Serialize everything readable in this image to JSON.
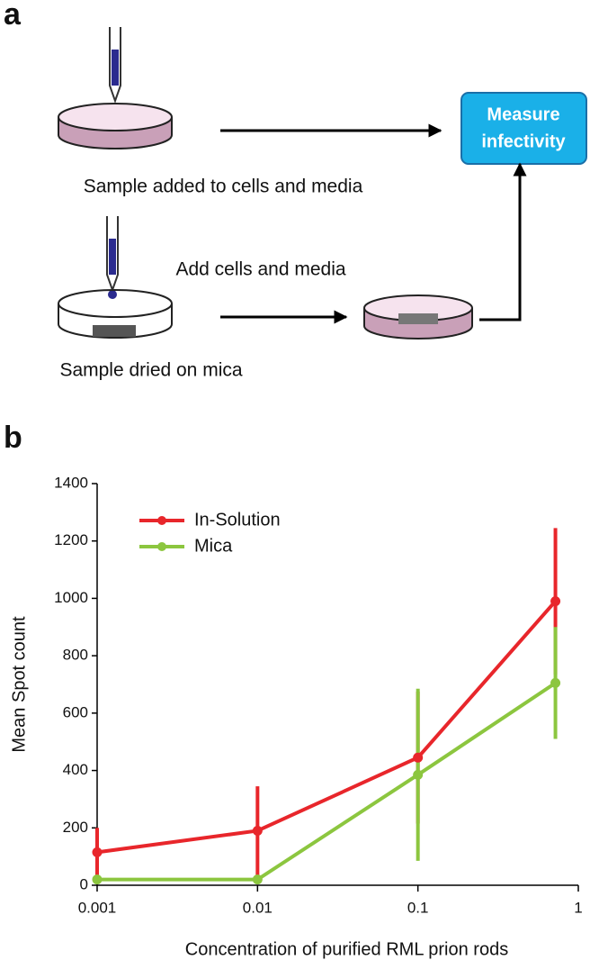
{
  "panel_a": {
    "label": "a",
    "box": [
      "Measure",
      "infectivity"
    ],
    "caption_top": "Sample added to cells and media",
    "caption_middle": "Add cells and media",
    "caption_bottom": "Sample dried on mica"
  },
  "panel_b": {
    "label": "b"
  },
  "chart_data": {
    "type": "line",
    "xlabel": "Concentration of purified RML prion rods",
    "ylabel": "Mean Spot count",
    "x": [
      0.001,
      0.01,
      0.1,
      0.72
    ],
    "xscale": "log",
    "xlim": [
      0.001,
      1
    ],
    "xticks": [
      0.001,
      0.01,
      0.1,
      1
    ],
    "ylim": [
      0,
      1400
    ],
    "yticks": [
      0,
      200,
      400,
      600,
      800,
      1000,
      1200,
      1400
    ],
    "legend": "upper left",
    "series": [
      {
        "name": "In-Solution",
        "color": "#e8262b",
        "values": [
          115,
          190,
          445,
          990
        ],
        "errors": [
          85,
          155,
          230,
          255
        ]
      },
      {
        "name": "Mica",
        "color": "#8cc63f",
        "values": [
          20,
          20,
          385,
          705
        ],
        "errors": [
          0,
          0,
          300,
          195
        ]
      }
    ]
  }
}
